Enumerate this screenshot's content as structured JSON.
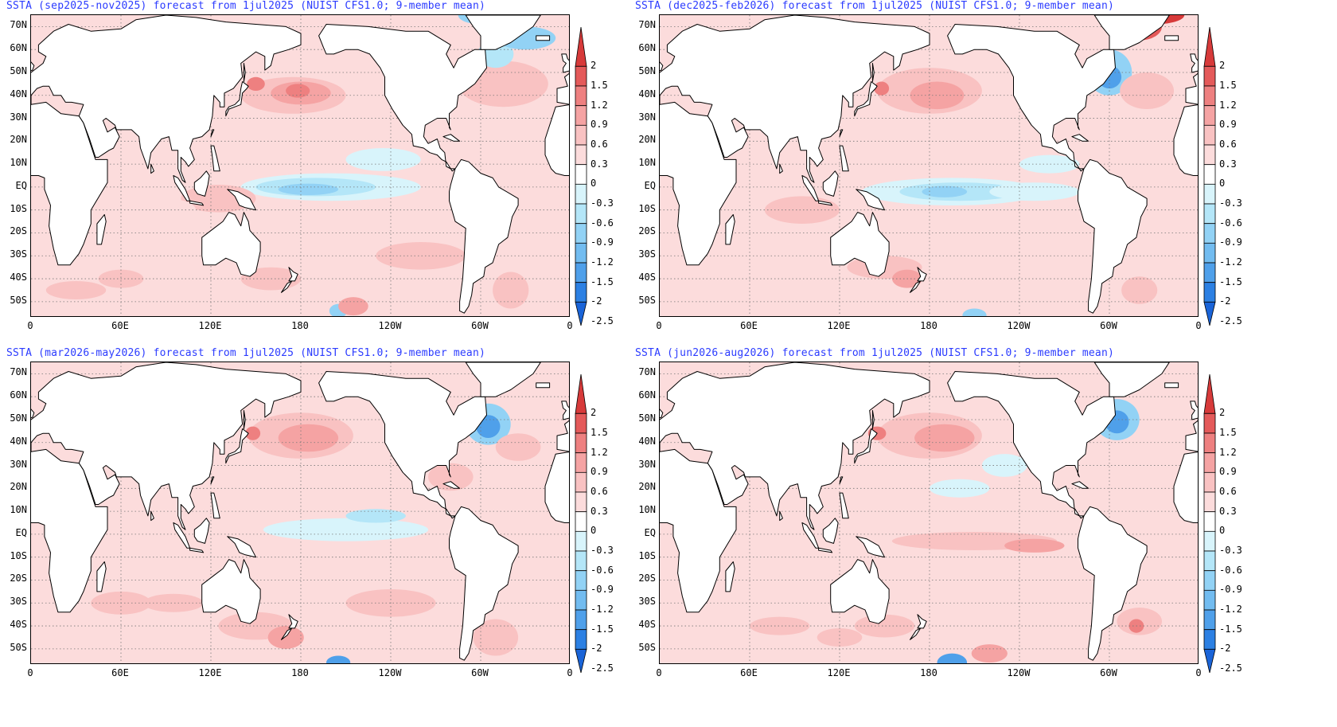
{
  "panels": [
    {
      "title": "SSTA (sep2025-nov2025) forecast from 1jul2025 (NUIST CFS1.0; 9-member mean)",
      "variant": 0
    },
    {
      "title": "SSTA (dec2025-feb2026) forecast from 1jul2025 (NUIST CFS1.0; 9-member mean)",
      "variant": 1
    },
    {
      "title": "SSTA (mar2026-may2026) forecast from 1jul2025 (NUIST CFS1.0; 9-member mean)",
      "variant": 2
    },
    {
      "title": "SSTA (jun2026-aug2026) forecast from 1jul2025 (NUIST CFS1.0; 9-member mean)",
      "variant": 3
    }
  ],
  "lat_labels": [
    "70N",
    "60N",
    "50N",
    "40N",
    "30N",
    "20N",
    "10N",
    "EQ",
    "10S",
    "20S",
    "30S",
    "40S",
    "50S"
  ],
  "lon_labels": [
    "0",
    "60E",
    "120E",
    "180",
    "120W",
    "60W",
    "0"
  ],
  "colorbar": {
    "labels": [
      "2",
      "1.5",
      "1.2",
      "0.9",
      "0.6",
      "0.3",
      "0",
      "-0.3",
      "-0.6",
      "-0.9",
      "-1.2",
      "-1.5",
      "-2",
      "-2.5"
    ],
    "colors": [
      "#d73a3a",
      "#e45a5a",
      "#ee8080",
      "#f5a3a3",
      "#f9c2c2",
      "#fcdcdc",
      "#ffffff",
      "#d8f4fb",
      "#b4e6f8",
      "#92d2f5",
      "#72bcf0",
      "#4fa0ea",
      "#2c80e3",
      "#1a64d8"
    ]
  },
  "chart_data": {
    "type": "heatmap",
    "variable": "SSTA",
    "forecast_from": "1jul2025",
    "model": "NUIST CFS1.0; 9-member mean",
    "periods": [
      "sep2025-nov2025",
      "dec2025-feb2026",
      "mar2026-may2026",
      "jun2026-aug2026"
    ],
    "contour_levels": [
      -2.5,
      -2,
      -1.5,
      -1.2,
      -0.9,
      -0.6,
      -0.3,
      0,
      0.3,
      0.6,
      0.9,
      1.2,
      1.5,
      2
    ],
    "lat_range": [
      "55S",
      "75N"
    ],
    "lon_range": [
      "0",
      "0"
    ]
  }
}
